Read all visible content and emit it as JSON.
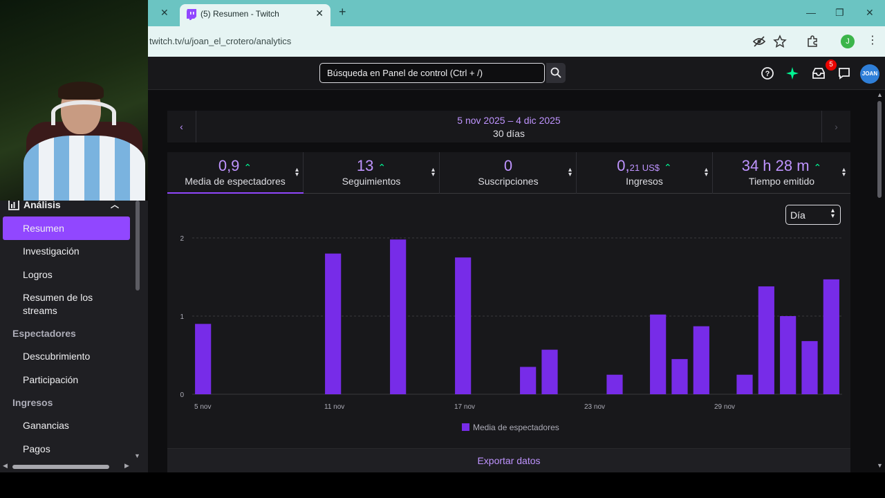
{
  "browser": {
    "tab_title": "(5) Resumen - Twitch",
    "url": "twitch.tv/u/joan_el_crotero/analytics",
    "profile_initial": "J"
  },
  "topbar": {
    "search_placeholder": "Búsqueda en Panel de control (Ctrl + /)",
    "notification_count": "5",
    "avatar_text": "JOAN"
  },
  "sidebar": {
    "section_title": "Análisis",
    "items": [
      {
        "label": "Resumen",
        "active": true
      },
      {
        "label": "Investigación"
      },
      {
        "label": "Logros"
      },
      {
        "label": "Resumen de los streams"
      }
    ],
    "groups": [
      {
        "title": "Espectadores",
        "items": [
          "Descubrimiento",
          "Participación"
        ]
      },
      {
        "title": "Ingresos",
        "items": [
          "Ganancias",
          "Pagos"
        ]
      }
    ]
  },
  "date_range": {
    "range": "5 nov 2025 – 4 dic 2025",
    "days": "30 días"
  },
  "stats": [
    {
      "value": "0,9",
      "label": "Media de espectadores",
      "trend": "up",
      "active": true
    },
    {
      "value": "13",
      "label": "Seguimientos",
      "trend": "up"
    },
    {
      "value": "0",
      "label": "Suscripciones",
      "trend": ""
    },
    {
      "value": "0,",
      "value_small": "21 US$",
      "label": "Ingresos",
      "trend": "up"
    },
    {
      "value": "34 h 28 m",
      "label": "Tiempo emitido",
      "trend": "up"
    }
  ],
  "granularity": "Día",
  "export_label": "Exportar datos",
  "colors": {
    "accent": "#9147ff",
    "bar": "#772ce8",
    "up": "#00f593"
  },
  "chart_data": {
    "type": "bar",
    "categories": [
      "5 nov",
      "6 nov",
      "7 nov",
      "8 nov",
      "9 nov",
      "10 nov",
      "11 nov",
      "12 nov",
      "13 nov",
      "14 nov",
      "15 nov",
      "16 nov",
      "17 nov",
      "18 nov",
      "19 nov",
      "20 nov",
      "21 nov",
      "22 nov",
      "23 nov",
      "24 nov",
      "25 nov",
      "26 nov",
      "27 nov",
      "28 nov",
      "29 nov",
      "30 nov",
      "1 dic",
      "2 dic",
      "3 dic",
      "4 dic"
    ],
    "tick_labels": [
      "5 nov",
      "11 nov",
      "17 nov",
      "23 nov",
      "29 nov"
    ],
    "series": [
      {
        "name": "Media de espectadores",
        "values": [
          0.9,
          0,
          0,
          0,
          0,
          0,
          1.8,
          0,
          0,
          1.98,
          0,
          0,
          1.75,
          0,
          0,
          0.35,
          0.57,
          0,
          0,
          0.25,
          0,
          1.02,
          0.45,
          0.87,
          0,
          0.25,
          1.38,
          1.0,
          0.68,
          1.47
        ]
      }
    ],
    "ylim": [
      0,
      2
    ],
    "yticks": [
      0,
      1,
      2
    ],
    "grid": true,
    "legend": "bottom-center"
  }
}
